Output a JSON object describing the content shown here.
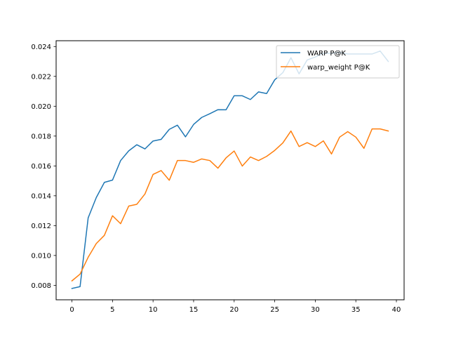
{
  "chart_data": {
    "type": "line",
    "title": "",
    "xlabel": "",
    "ylabel": "",
    "xlim": [
      -1.95,
      40.95
    ],
    "ylim": [
      0.00703,
      0.02439
    ],
    "xticks": [
      0,
      5,
      10,
      15,
      20,
      25,
      30,
      35,
      40
    ],
    "xtick_labels": [
      "0",
      "5",
      "10",
      "15",
      "20",
      "25",
      "30",
      "35",
      "40"
    ],
    "yticks": [
      0.008,
      0.01,
      0.012,
      0.014,
      0.016,
      0.018,
      0.02,
      0.022,
      0.024
    ],
    "ytick_labels": [
      "0.008",
      "0.010",
      "0.012",
      "0.014",
      "0.016",
      "0.018",
      "0.020",
      "0.022",
      "0.024"
    ],
    "grid": false,
    "legend_position": "top-right",
    "x": [
      0,
      1,
      2,
      3,
      4,
      5,
      6,
      7,
      8,
      9,
      10,
      11,
      12,
      13,
      14,
      15,
      16,
      17,
      18,
      19,
      20,
      21,
      22,
      23,
      24,
      25,
      26,
      27,
      28,
      29,
      30,
      31,
      32,
      33,
      34,
      35,
      36,
      37,
      38,
      39
    ],
    "series": [
      {
        "name": "WARP P@K",
        "color": "#1f77b4",
        "values": [
          0.00779,
          0.00791,
          0.01252,
          0.01388,
          0.0149,
          0.01505,
          0.01636,
          0.01701,
          0.01742,
          0.01714,
          0.01767,
          0.01778,
          0.01845,
          0.01873,
          0.01795,
          0.01878,
          0.01925,
          0.0195,
          0.01977,
          0.01976,
          0.0207,
          0.0207,
          0.02045,
          0.02096,
          0.02085,
          0.02177,
          0.02225,
          0.02325,
          0.02217,
          0.0231,
          0.0233,
          0.02355,
          0.02355,
          0.0236,
          0.0235,
          0.0235,
          0.0235,
          0.0235,
          0.0237,
          0.023
        ]
      },
      {
        "name": "warp_weight P@K",
        "color": "#ff7f0e",
        "values": [
          0.0083,
          0.00875,
          0.00988,
          0.0108,
          0.01135,
          0.01266,
          0.01213,
          0.01331,
          0.01343,
          0.01412,
          0.01543,
          0.01569,
          0.01504,
          0.01636,
          0.01636,
          0.01624,
          0.01647,
          0.01636,
          0.01585,
          0.01654,
          0.017,
          0.01599,
          0.0166,
          0.01636,
          0.01664,
          0.01704,
          0.01754,
          0.01834,
          0.0173,
          0.01756,
          0.0173,
          0.01768,
          0.0168,
          0.01793,
          0.0183,
          0.01793,
          0.01718,
          0.01848,
          0.01848,
          0.01834
        ]
      }
    ]
  }
}
